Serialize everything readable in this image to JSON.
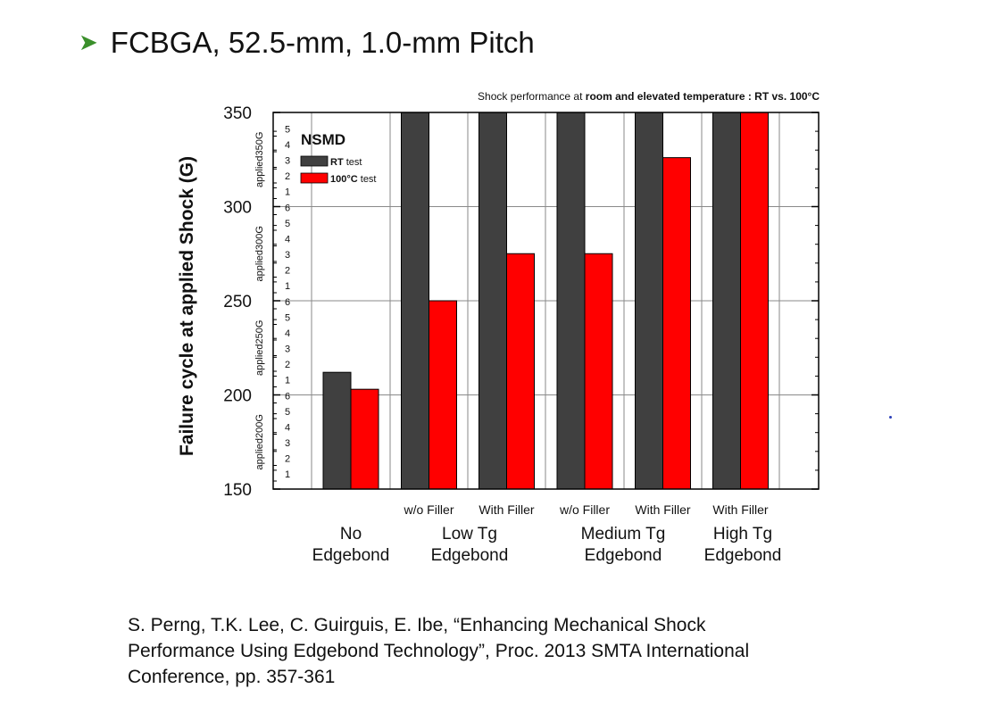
{
  "slide": {
    "title": "FCBGA, 52.5-mm, 1.0-mm Pitch",
    "bullet_icon": "arrow-bullet-icon",
    "bullet_color": "#3a8f2b"
  },
  "chart_data": {
    "type": "bar",
    "title_prefix": "Shock performance at ",
    "title_bold": "room and elevated temperature : RT vs. 100°C",
    "ylabel": "Failure cycle at applied Shock (G)",
    "ylim": [
      150,
      350
    ],
    "yticks": [
      150,
      200,
      250,
      300,
      350
    ],
    "grid": true,
    "legend": {
      "title": "NSMD",
      "placement": "top-left",
      "entries": [
        {
          "prefix": "RT",
          "suffix": " test",
          "color": "#404040"
        },
        {
          "prefix": "100°C",
          "suffix": " test",
          "color": "#ff0000"
        }
      ]
    },
    "applied_bands": [
      {
        "label": "applied200G",
        "cycles": [
          "1",
          "2",
          "3",
          "4",
          "5",
          "6"
        ]
      },
      {
        "label": "applied250G",
        "cycles": [
          "1",
          "2",
          "3",
          "4",
          "5",
          "6"
        ]
      },
      {
        "label": "applied300G",
        "cycles": [
          "1",
          "2",
          "3",
          "4",
          "5",
          "6"
        ]
      },
      {
        "label": "applied350G",
        "cycles": [
          "1",
          "2",
          "3",
          "4",
          "5"
        ]
      }
    ],
    "categories": [
      "",
      "w/o Filler",
      "With Filler",
      "w/o Filler",
      "With Filler",
      "With Filler"
    ],
    "series": [
      {
        "name": "RT test",
        "color": "#404040",
        "values": [
          212,
          350,
          350,
          350,
          350,
          350
        ]
      },
      {
        "name": "100°C test",
        "color": "#ff0000",
        "values": [
          203,
          250,
          275,
          275,
          326,
          350
        ]
      }
    ],
    "groups": [
      {
        "line1": "No",
        "line2": "Edgebond"
      },
      {
        "line1": "Low Tg",
        "line2": "Edgebond"
      },
      {
        "line1": "Medium Tg",
        "line2": "Edgebond"
      },
      {
        "line1": "High Tg",
        "line2": "Edgebond"
      }
    ]
  },
  "citation": {
    "line1": "S. Perng, T.K. Lee, C. Guirguis, E. Ibe, “Enhancing Mechanical Shock",
    "line2": "Performance Using Edgebond Technology”, Proc. 2013 SMTA International",
    "line3": "Conference, pp. 357-361"
  }
}
